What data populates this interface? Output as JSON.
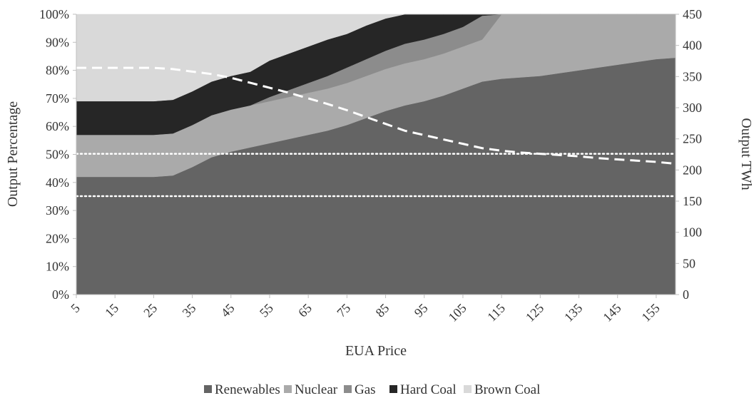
{
  "chart_data": {
    "type": "area",
    "stacking": "percent",
    "xlabel": "EUA Price",
    "ylabel": "Output Percentage",
    "y2label": "Output TWh",
    "x": [
      5,
      10,
      15,
      20,
      25,
      30,
      35,
      40,
      45,
      50,
      55,
      60,
      65,
      70,
      75,
      80,
      85,
      90,
      95,
      100,
      105,
      110,
      115,
      120,
      125,
      130,
      135,
      140,
      145,
      150,
      155,
      160
    ],
    "x_tick_labels": [
      "5",
      "15",
      "25",
      "35",
      "45",
      "55",
      "65",
      "75",
      "85",
      "95",
      "105",
      "115",
      "125",
      "135",
      "145",
      "155"
    ],
    "y_tick_labels": [
      "0%",
      "10%",
      "20%",
      "30%",
      "40%",
      "50%",
      "60%",
      "70%",
      "80%",
      "90%",
      "100%"
    ],
    "y2_tick_labels": [
      "0",
      "50",
      "100",
      "150",
      "200",
      "250",
      "300",
      "350",
      "400",
      "450"
    ],
    "ylim": [
      0,
      100
    ],
    "y2lim": [
      0,
      450
    ],
    "series": [
      {
        "name": "Renewables",
        "color": "#646464",
        "values": [
          42,
          42,
          42,
          42,
          42,
          42.5,
          45.5,
          49,
          51,
          52.5,
          54,
          55.5,
          57,
          58.5,
          60.5,
          63,
          65.5,
          67.5,
          69,
          71,
          73.5,
          76,
          77,
          77.5,
          78,
          79,
          80,
          81,
          82,
          83,
          84,
          84.5
        ]
      },
      {
        "name": "Nuclear",
        "color": "#aaaaaa",
        "values": [
          15,
          15,
          15,
          15,
          15,
          15,
          15,
          15,
          15,
          15,
          15,
          15,
          15,
          15,
          15,
          15,
          15,
          15,
          15,
          15,
          15,
          15,
          23,
          22.5,
          22,
          21,
          20,
          19,
          18,
          17,
          16,
          15.5
        ]
      },
      {
        "name": "Gas",
        "color": "#8c8c8c",
        "values": [
          0,
          0,
          0,
          0,
          0,
          0,
          0,
          0,
          0,
          0,
          1.5,
          2.5,
          3.5,
          4.5,
          5.5,
          6,
          6.5,
          7,
          7,
          7,
          7,
          8.5,
          0,
          0,
          0,
          0,
          0,
          0,
          0,
          0,
          0,
          0
        ]
      },
      {
        "name": "Hard Coal",
        "color": "#262626",
        "values": [
          12,
          12,
          12,
          12,
          12,
          12,
          12,
          12,
          12,
          12,
          13,
          13,
          13,
          13,
          12,
          12,
          11.5,
          10.5,
          9,
          7,
          4.5,
          0.5,
          0,
          0,
          0,
          0,
          0,
          0,
          0,
          0,
          0,
          0
        ]
      },
      {
        "name": "Brown Coal",
        "color": "#d9d9d9",
        "values": [
          31,
          31,
          31,
          31,
          31,
          30.5,
          27.5,
          24,
          22,
          20.5,
          16.5,
          14,
          11.5,
          9,
          7,
          4,
          1.5,
          0,
          0,
          0,
          0,
          0,
          0,
          0,
          0,
          0,
          0,
          0,
          0,
          0,
          0,
          0
        ]
      }
    ],
    "dashed_line": {
      "axis": "secondary",
      "color": "#ffffff",
      "values": [
        364,
        364,
        364,
        364,
        364,
        362,
        358,
        354,
        348,
        340,
        332,
        324,
        315,
        306,
        296,
        285,
        274,
        263,
        256,
        249,
        242,
        235,
        231,
        228,
        226,
        224,
        222,
        219,
        217,
        215,
        213,
        210
      ]
    },
    "reference_lines": [
      {
        "axis": "secondary",
        "value": 226,
        "style": "dotted",
        "color": "#ffffff"
      },
      {
        "axis": "secondary",
        "value": 158,
        "style": "dotted",
        "color": "#ffffff"
      }
    ],
    "legend_position": "bottom",
    "grid": false
  }
}
